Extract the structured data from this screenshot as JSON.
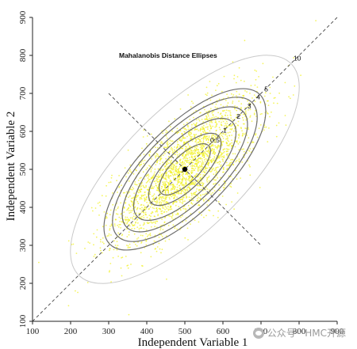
{
  "chart_data": {
    "type": "scatter",
    "title": "Mahalanobis Distance Ellipses",
    "xlabel": "Independent Variable 1",
    "ylabel": "Independent Variable 2",
    "xlim": [
      100,
      900
    ],
    "ylim": [
      100,
      900
    ],
    "xticks": [
      100,
      200,
      300,
      400,
      500,
      600,
      700,
      800,
      900
    ],
    "yticks": [
      100,
      200,
      300,
      400,
      500,
      600,
      700,
      800,
      900
    ],
    "grid": false,
    "center": {
      "x": 500,
      "y": 500
    },
    "point_color": "#f2f22a",
    "point_count_drawn": 2600,
    "correlation": 0.72,
    "sd_x": 95,
    "sd_y": 95,
    "major_axis_line": {
      "from": [
        100,
        100
      ],
      "to": [
        900,
        900
      ]
    },
    "minor_axis_line": {
      "from": [
        300,
        700
      ],
      "to": [
        700,
        300
      ]
    },
    "ellipses": [
      {
        "label": "0.5",
        "d2": 0.5
      },
      {
        "label": "1",
        "d2": 1
      },
      {
        "label": "2",
        "d2": 2
      },
      {
        "label": "3",
        "d2": 3
      },
      {
        "label": "4",
        "d2": 4
      },
      {
        "label": "5",
        "d2": 5
      },
      {
        "label": "10",
        "d2": 10
      }
    ]
  },
  "watermark": {
    "text": "公众号 · HMC开源"
  }
}
